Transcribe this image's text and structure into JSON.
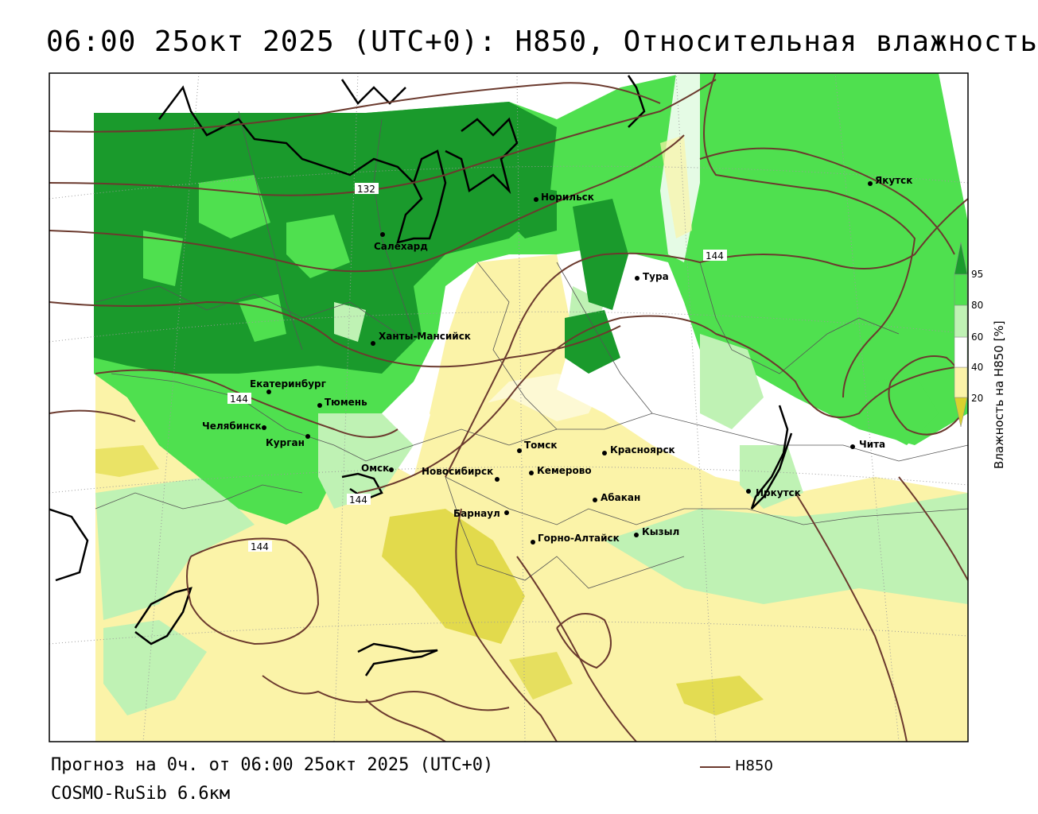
{
  "title": "06:00 25окт 2025 (UTC+0): H850, Относительная влажность",
  "footer": {
    "forecast": "Прогноз на 0ч. от 06:00 25окт 2025 (UTC+0)",
    "model": "COSMO-RuSib 6.6км"
  },
  "legend": {
    "line_label": "H850",
    "line_color": "#6b3a2e"
  },
  "colorbar": {
    "title": "Влажность на H850 [%]",
    "ticks": [
      "20",
      "40",
      "60",
      "80",
      "95"
    ],
    "colors": [
      "#d9d22e",
      "#fbf3a8",
      "#ffffff",
      "#bff2b4",
      "#4fe04f",
      "#1a9a2c"
    ]
  },
  "isoline_labels": [
    "132",
    "144",
    "144",
    "144",
    "144"
  ],
  "cities": [
    {
      "name": "Якутск"
    },
    {
      "name": "Норильск"
    },
    {
      "name": "Салехард"
    },
    {
      "name": "Тура"
    },
    {
      "name": "Ханты-Мансийск"
    },
    {
      "name": "Екатеринбург"
    },
    {
      "name": "Тюмень"
    },
    {
      "name": "Челябинск"
    },
    {
      "name": "Курган"
    },
    {
      "name": "Омск"
    },
    {
      "name": "Новосибирск"
    },
    {
      "name": "Томск"
    },
    {
      "name": "Кемерово"
    },
    {
      "name": "Красноярск"
    },
    {
      "name": "Абакан"
    },
    {
      "name": "Барнаул"
    },
    {
      "name": "Горно-Алтайск"
    },
    {
      "name": "Кызыл"
    },
    {
      "name": "Иркутск"
    },
    {
      "name": "Чита"
    }
  ]
}
